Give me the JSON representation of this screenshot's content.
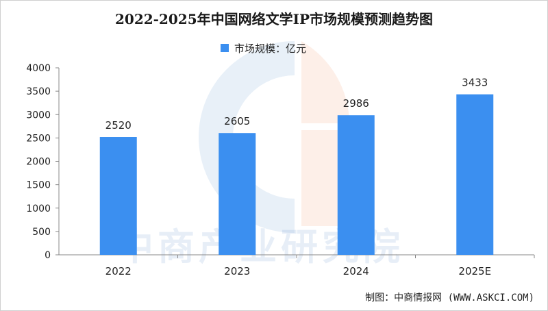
{
  "chart_data": {
    "type": "bar",
    "title": "2022-2025年中国网络文学IP市场规模预测趋势图",
    "legend": "市场规模：亿元",
    "categories": [
      "2022",
      "2023",
      "2024",
      "2025E"
    ],
    "series": [
      {
        "name": "市场规模：亿元",
        "values": [
          2520,
          2605,
          2986,
          3433
        ]
      }
    ],
    "ylim": [
      0,
      4000
    ],
    "yticks": [
      0,
      500,
      1000,
      1500,
      2000,
      2500,
      3000,
      3500,
      4000
    ],
    "legend_position": "top-center",
    "grid": false,
    "bar_color": "#3b8ff0"
  },
  "watermark": "中商产业研究院",
  "footer": "制图：中商情报网 (WWW.ASKCI.COM)"
}
